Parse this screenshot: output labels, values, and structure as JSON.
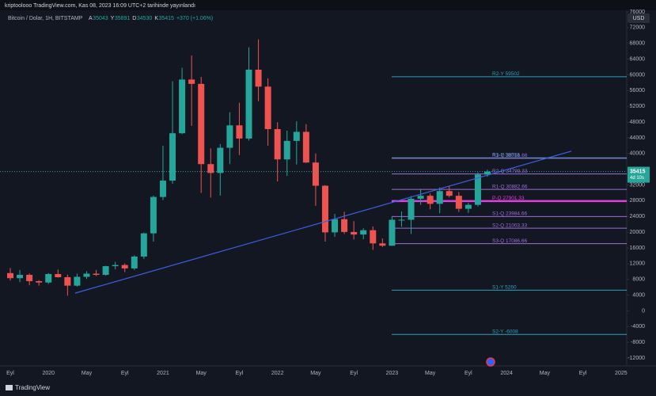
{
  "header": {
    "publisher": "kriptoolooo TradingView.com, Kas 08, 2023 16:09 UTC+2 tarihinde yayınlandı"
  },
  "chart_data": {
    "type": "candlestick",
    "title": "Bitcoin / Dolar, 1H, BITSTAMP",
    "ohlc_header": {
      "open_label": "A",
      "open": 35043,
      "high_label": "Y",
      "high": 35891,
      "low_label": "D",
      "low": 34530,
      "close_label": "K",
      "close": 35415,
      "change": "+370 (+1.06%)"
    },
    "currency": "USD",
    "categories": [
      "Eyl",
      null,
      null,
      null,
      "2020",
      null,
      null,
      null,
      "May",
      null,
      null,
      null,
      "Eyl",
      null,
      null,
      null,
      "2021",
      null,
      null,
      null,
      "May",
      null,
      null,
      null,
      "Eyl",
      null,
      null,
      null,
      "2022",
      null,
      null,
      null,
      "May",
      null,
      null,
      null,
      "Eyl",
      null,
      null,
      null,
      "2023",
      null,
      null,
      null,
      "May",
      null,
      null,
      null,
      "Eyl",
      null,
      null,
      null,
      "2024",
      null,
      null,
      null,
      "May",
      null,
      null,
      null,
      "Eyl",
      null,
      null,
      null,
      "2025"
    ],
    "open": [
      9600,
      8300,
      9150,
      7550,
      7200,
      9350,
      8550,
      6400,
      8650,
      9450,
      9150,
      11350,
      11650,
      10780,
      13800,
      19700,
      28950,
      33100,
      45150,
      58800,
      57700,
      37300,
      35050,
      41450,
      47150,
      43800,
      61300,
      57000,
      46200,
      38500,
      43200,
      45500,
      37700,
      31800,
      19950,
      23300,
      20050,
      19400,
      20500,
      17150,
      16550,
      23150,
      23150,
      28500,
      29250,
      27200,
      30450,
      29250,
      25950,
      26950,
      34650,
      null,
      null,
      null,
      null,
      null,
      null,
      null,
      null,
      null,
      null,
      null,
      null,
      null,
      null
    ],
    "high": [
      10900,
      10400,
      9500,
      7800,
      9600,
      10500,
      9200,
      9450,
      10080,
      10400,
      11450,
      12480,
      12050,
      14100,
      19900,
      29300,
      41950,
      58350,
      61800,
      64900,
      59500,
      41300,
      42400,
      50500,
      52900,
      67000,
      69000,
      59100,
      47950,
      45800,
      48200,
      47450,
      40000,
      31950,
      24650,
      25200,
      22800,
      21000,
      21450,
      18400,
      23950,
      25250,
      29200,
      31000,
      29850,
      31400,
      31800,
      30200,
      27450,
      35200,
      35900,
      null,
      null,
      null,
      null,
      null,
      null,
      null,
      null,
      null,
      null,
      null,
      null,
      null,
      null
    ],
    "low": [
      7700,
      7300,
      6500,
      6400,
      6850,
      8450,
      3850,
      6150,
      8100,
      8850,
      8950,
      10550,
      9850,
      10400,
      13200,
      17600,
      28150,
      32300,
      44950,
      47000,
      30000,
      28800,
      29300,
      37300,
      39600,
      43300,
      53300,
      42000,
      32900,
      34300,
      37200,
      37600,
      26700,
      17600,
      18800,
      19550,
      18150,
      18200,
      15500,
      16250,
      16500,
      21400,
      19550,
      26950,
      25800,
      24800,
      28850,
      25150,
      24900,
      26550,
      34100,
      null,
      null,
      null,
      null,
      null,
      null,
      null,
      null,
      null,
      null,
      null,
      null,
      null,
      null
    ],
    "close": [
      8300,
      9150,
      7550,
      7200,
      9350,
      8550,
      6400,
      8650,
      9450,
      9150,
      11350,
      11650,
      10780,
      13800,
      19700,
      28950,
      33100,
      45150,
      58800,
      57700,
      37300,
      35050,
      41450,
      47150,
      43800,
      61300,
      57000,
      46200,
      38500,
      43200,
      45500,
      37700,
      31800,
      19950,
      23300,
      20050,
      19400,
      20500,
      17150,
      16550,
      23150,
      23150,
      28500,
      29250,
      27200,
      30450,
      29250,
      25950,
      26950,
      34650,
      35415,
      null,
      null,
      null,
      null,
      null,
      null,
      null,
      null,
      null,
      null,
      null,
      null,
      null,
      null
    ],
    "up_color": "#26a69a",
    "down_color": "#ef5350",
    "last_price": 35415,
    "countdown": "4d 10s",
    "ylim": [
      -14000,
      76200
    ],
    "yticks": [
      -12000,
      -8000,
      -4000,
      0,
      4000,
      8000,
      12000,
      16000,
      20000,
      24000,
      28000,
      32000,
      36000,
      40000,
      44000,
      48000,
      52000,
      56000,
      60000,
      64000,
      68000,
      72000,
      76000
    ],
    "trendline": {
      "x": [
        6.8,
        58.8
      ],
      "y": [
        4500,
        40600
      ],
      "color": "#3f5fe0"
    },
    "levels": [
      {
        "name": "R2-Y 59502",
        "value": 59502,
        "color": "#2fa0b8"
      },
      {
        "name": "R1-Y 38913",
        "value": 38913,
        "color": "#2fa0b8"
      },
      {
        "name": "R3-Q 38766.66",
        "value": 38766.66,
        "color": "#9c6fd6"
      },
      {
        "name": "R2-Q 34799.33",
        "value": 34799.33,
        "color": "#9c6fd6"
      },
      {
        "name": "R1-Q 30882.66",
        "value": 30882.66,
        "color": "#9c6fd6"
      },
      {
        "name": "P-Q 27901.33",
        "value": 27901.33,
        "color": "#e040e0"
      },
      {
        "name": "S1-Q 23984.66",
        "value": 23984.66,
        "color": "#9c6fd6"
      },
      {
        "name": "S2-Q 21003.33",
        "value": 21003.33,
        "color": "#9c6fd6"
      },
      {
        "name": "S3-Q 17086.66",
        "value": 17086.66,
        "color": "#9c6fd6"
      },
      {
        "name": "S1-Y 5260",
        "value": 5260,
        "color": "#2fa0b8"
      },
      {
        "name": "S2-Y -6008",
        "value": -6008,
        "color": "#2fa0b8"
      }
    ]
  },
  "footer": {
    "brand": "TradingView"
  }
}
